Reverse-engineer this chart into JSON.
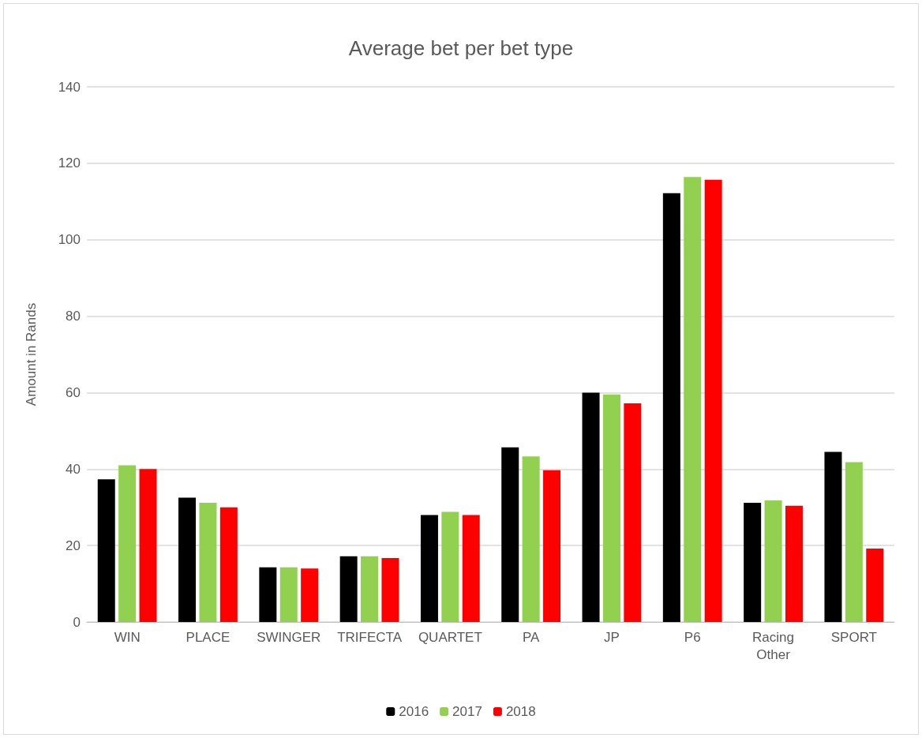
{
  "chart_data": {
    "type": "bar",
    "title": "Average bet per bet type",
    "ylabel": "Amount in Rands",
    "categories": [
      "WIN",
      "PLACE",
      "SWINGER",
      "TRIFECTA",
      "QUARTET",
      "PA",
      "JP",
      "P6",
      "Racing Other",
      "SPORT"
    ],
    "series": [
      {
        "name": "2016",
        "color": "#000000",
        "values": [
          37.3,
          32.5,
          14.3,
          17.2,
          28,
          45.7,
          60,
          112.2,
          31.2,
          44.5
        ]
      },
      {
        "name": "2017",
        "color": "#92d050",
        "values": [
          41,
          31.2,
          14.3,
          17.2,
          28.8,
          43.3,
          59.5,
          116.4,
          31.8,
          41.8
        ]
      },
      {
        "name": "2018",
        "color": "#ff0000",
        "values": [
          40,
          30,
          14,
          16.7,
          28,
          39.7,
          57.2,
          115.7,
          30.4,
          19.2
        ]
      }
    ],
    "ylim": [
      0,
      140
    ],
    "yticks": [
      0,
      20,
      40,
      60,
      80,
      100,
      120,
      140
    ],
    "grid": "y",
    "legend": "bottom"
  }
}
